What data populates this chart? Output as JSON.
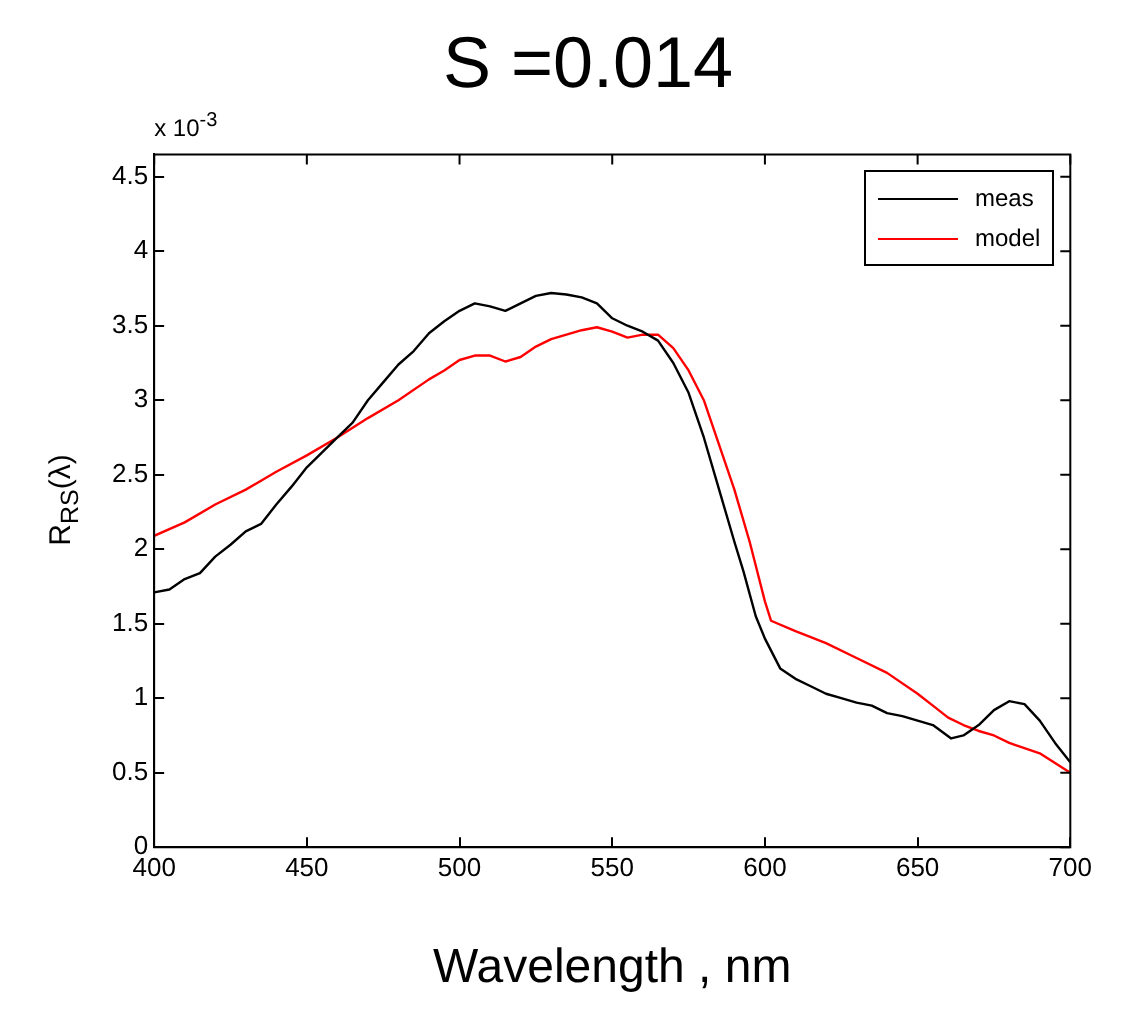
{
  "chart_data": {
    "type": "line",
    "title": "S =0.014",
    "xlabel": "Wavelength , nm",
    "ylabel": "R$_{RS}$(λ)",
    "annotations": [
      "x 10$^{-3}$"
    ],
    "xlim": [
      400,
      700
    ],
    "xticks": [
      400,
      450,
      500,
      550,
      600,
      650,
      700
    ],
    "ylim": [
      0,
      4.65
    ],
    "yticks": [
      0,
      0.5,
      1,
      1.5,
      2,
      2.5,
      3,
      3.5,
      4,
      4.5
    ],
    "grid": false,
    "legend": "top right",
    "marker": "none",
    "line_style": "solid",
    "series": [
      {
        "name": "meas",
        "color": "#000000",
        "x": [
          400,
          405,
          410,
          415,
          420,
          425,
          430,
          435,
          440,
          445,
          450,
          455,
          460,
          465,
          470,
          475,
          480,
          485,
          490,
          495,
          500,
          505,
          510,
          515,
          520,
          525,
          530,
          535,
          540,
          545,
          550,
          555,
          560,
          565,
          570,
          575,
          580,
          585,
          590,
          593,
          597,
          600,
          605,
          610,
          615,
          620,
          625,
          630,
          635,
          640,
          645,
          650,
          655,
          661,
          665,
          670,
          675,
          680,
          685,
          690,
          695,
          700
        ],
        "values": [
          1.71,
          1.73,
          1.8,
          1.84,
          1.95,
          2.03,
          2.12,
          2.17,
          2.3,
          2.42,
          2.55,
          2.65,
          2.75,
          2.85,
          3.0,
          3.12,
          3.24,
          3.33,
          3.45,
          3.53,
          3.6,
          3.65,
          3.63,
          3.6,
          3.65,
          3.7,
          3.72,
          3.71,
          3.69,
          3.65,
          3.55,
          3.5,
          3.46,
          3.4,
          3.25,
          3.05,
          2.75,
          2.4,
          2.05,
          1.85,
          1.55,
          1.4,
          1.2,
          1.13,
          1.08,
          1.03,
          1.0,
          0.97,
          0.95,
          0.9,
          0.88,
          0.85,
          0.82,
          0.73,
          0.75,
          0.82,
          0.92,
          0.98,
          0.96,
          0.85,
          0.7,
          0.57
        ]
      },
      {
        "name": "model",
        "color": "#ff0000",
        "x": [
          400,
          410,
          420,
          430,
          440,
          450,
          460,
          470,
          480,
          490,
          495,
          500,
          505,
          510,
          515,
          520,
          525,
          530,
          535,
          540,
          545,
          550,
          555,
          560,
          565,
          570,
          575,
          580,
          585,
          590,
          595,
          600,
          602,
          610,
          620,
          630,
          640,
          650,
          655,
          660,
          665,
          670,
          675,
          680,
          690,
          700
        ],
        "values": [
          2.09,
          2.18,
          2.3,
          2.4,
          2.52,
          2.63,
          2.75,
          2.88,
          3.0,
          3.14,
          3.2,
          3.27,
          3.3,
          3.3,
          3.26,
          3.29,
          3.36,
          3.41,
          3.44,
          3.47,
          3.49,
          3.46,
          3.42,
          3.44,
          3.44,
          3.35,
          3.2,
          3.0,
          2.7,
          2.4,
          2.05,
          1.65,
          1.52,
          1.45,
          1.37,
          1.27,
          1.17,
          1.03,
          0.95,
          0.87,
          0.82,
          0.78,
          0.75,
          0.7,
          0.63,
          0.5
        ]
      }
    ]
  }
}
